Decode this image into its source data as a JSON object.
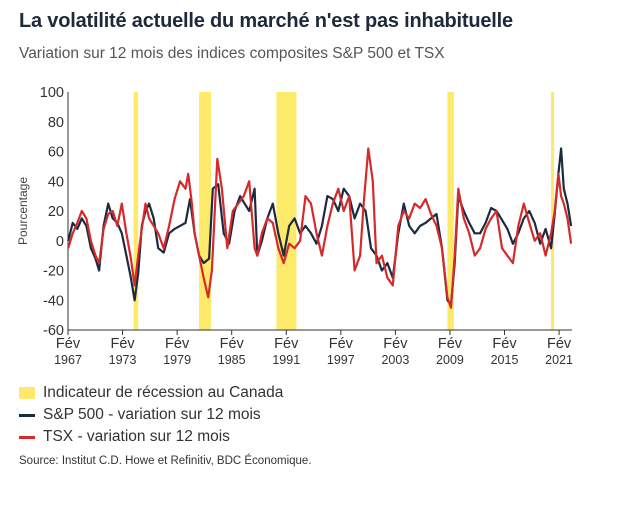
{
  "title": "La volatilité actuelle du marché n'est pas inhabituelle",
  "subtitle": "Variation sur 12 mois des indices composites S&P 500 et TSX",
  "source": "Source: Institut C.D. Howe et Refinitiv, BDC Économique.",
  "chart_data": {
    "type": "line",
    "ylabel": "Pourcentage",
    "ylim": [
      -60,
      100
    ],
    "yticks": [
      -60,
      -40,
      -20,
      0,
      20,
      40,
      60,
      80,
      100
    ],
    "xlim": [
      1967.08,
      2022.5
    ],
    "xticks": [
      {
        "value": 1967.08,
        "line1": "Fév",
        "line2": "1967"
      },
      {
        "value": 1973.08,
        "line1": "Fév",
        "line2": "1973"
      },
      {
        "value": 1979.08,
        "line1": "Fév",
        "line2": "1979"
      },
      {
        "value": 1985.08,
        "line1": "Fév",
        "line2": "1985"
      },
      {
        "value": 1991.08,
        "line1": "Fév",
        "line2": "1991"
      },
      {
        "value": 1997.08,
        "line1": "Fév",
        "line2": "1997"
      },
      {
        "value": 2003.08,
        "line1": "Fév",
        "line2": "2003"
      },
      {
        "value": 2009.08,
        "line1": "Fév",
        "line2": "2009"
      },
      {
        "value": 2015.08,
        "line1": "Fév",
        "line2": "2015"
      },
      {
        "value": 2021.08,
        "line1": "Fév",
        "line2": "2021"
      }
    ],
    "recessions": [
      [
        1974.3,
        1974.8
      ],
      [
        1981.5,
        1982.8
      ],
      [
        1990.0,
        1992.2
      ],
      [
        2008.8,
        2009.5
      ],
      [
        2020.2,
        2020.5
      ]
    ],
    "legend": [
      {
        "label": "Indicateur de récession au Canada",
        "color": "#fde96a",
        "kind": "box"
      },
      {
        "label": "S&P 500 - variation sur 12 mois",
        "color": "#1c2b3f",
        "kind": "line"
      },
      {
        "label": "TSX - variation sur 12 mois",
        "color": "#d62a2a",
        "kind": "line"
      }
    ],
    "series": [
      {
        "name": "S&P 500 - variation sur 12 mois",
        "color": "#1c2b3f",
        "x": [
          1967.1,
          1967.6,
          1968.1,
          1968.6,
          1969.1,
          1969.6,
          1970.1,
          1970.5,
          1971.0,
          1971.5,
          1972.0,
          1972.5,
          1973.0,
          1973.5,
          1974.0,
          1974.4,
          1974.8,
          1975.2,
          1975.6,
          1976.0,
          1976.5,
          1977.0,
          1977.6,
          1978.2,
          1978.8,
          1979.4,
          1980.0,
          1980.5,
          1981.0,
          1981.5,
          1982.0,
          1982.6,
          1983.0,
          1983.6,
          1984.2,
          1984.8,
          1985.4,
          1986.0,
          1986.5,
          1987.0,
          1987.6,
          1987.9,
          1988.4,
          1989.0,
          1989.6,
          1990.2,
          1990.8,
          1991.4,
          1992.0,
          1992.6,
          1993.2,
          1993.8,
          1994.4,
          1995.0,
          1995.6,
          1996.2,
          1996.8,
          1997.4,
          1998.0,
          1998.6,
          1999.2,
          1999.8,
          2000.4,
          2001.0,
          2001.6,
          2002.2,
          2002.8,
          2003.4,
          2004.0,
          2004.6,
          2005.2,
          2005.8,
          2006.4,
          2007.0,
          2007.6,
          2008.2,
          2008.8,
          2009.2,
          2009.6,
          2010.0,
          2010.6,
          2011.2,
          2011.8,
          2012.4,
          2013.0,
          2013.6,
          2014.2,
          2014.8,
          2015.4,
          2016.0,
          2016.6,
          2017.2,
          2017.8,
          2018.4,
          2019.0,
          2019.6,
          2020.2,
          2020.6,
          2021.0,
          2021.3,
          2021.6,
          2022.0,
          2022.4
        ],
        "y": [
          0,
          12,
          8,
          15,
          10,
          -5,
          -12,
          -20,
          10,
          25,
          15,
          12,
          5,
          -10,
          -25,
          -40,
          -22,
          10,
          20,
          25,
          15,
          -5,
          -8,
          5,
          8,
          10,
          12,
          28,
          5,
          -10,
          -15,
          -12,
          35,
          38,
          5,
          -2,
          20,
          30,
          25,
          20,
          35,
          -10,
          0,
          15,
          25,
          5,
          -10,
          10,
          15,
          5,
          10,
          5,
          -2,
          10,
          30,
          28,
          20,
          35,
          30,
          15,
          25,
          20,
          -5,
          -10,
          -20,
          -15,
          -25,
          5,
          25,
          10,
          5,
          10,
          12,
          15,
          18,
          -5,
          -40,
          -43,
          -15,
          30,
          20,
          12,
          5,
          5,
          12,
          22,
          20,
          14,
          8,
          -2,
          5,
          15,
          20,
          12,
          -2,
          8,
          -5,
          18,
          45,
          62,
          35,
          25,
          10
        ]
      },
      {
        "name": "TSX - variation sur 12 mois",
        "color": "#d62a2a",
        "x": [
          1967.1,
          1967.6,
          1968.1,
          1968.6,
          1969.1,
          1969.6,
          1970.1,
          1970.5,
          1971.0,
          1971.5,
          1972.0,
          1972.5,
          1973.0,
          1973.5,
          1974.0,
          1974.4,
          1974.8,
          1975.2,
          1975.6,
          1976.0,
          1976.5,
          1977.0,
          1977.6,
          1978.2,
          1978.8,
          1979.4,
          1980.0,
          1980.3,
          1980.7,
          1981.0,
          1981.5,
          1982.0,
          1982.5,
          1982.9,
          1983.5,
          1984.0,
          1984.6,
          1985.2,
          1985.8,
          1986.4,
          1987.0,
          1987.6,
          1987.9,
          1988.4,
          1989.0,
          1989.6,
          1990.2,
          1990.8,
          1991.4,
          1992.0,
          1992.6,
          1993.2,
          1993.8,
          1994.4,
          1995.0,
          1995.6,
          1996.2,
          1996.8,
          1997.4,
          1998.0,
          1998.6,
          1999.2,
          1999.6,
          2000.1,
          2000.6,
          2001.0,
          2001.6,
          2002.2,
          2002.8,
          2003.4,
          2004.0,
          2004.6,
          2005.2,
          2005.8,
          2006.4,
          2007.0,
          2007.6,
          2008.2,
          2008.8,
          2009.2,
          2009.6,
          2010.0,
          2010.6,
          2011.2,
          2011.8,
          2012.4,
          2013.0,
          2013.6,
          2014.2,
          2014.8,
          2015.4,
          2016.0,
          2016.6,
          2017.2,
          2017.8,
          2018.4,
          2019.0,
          2019.6,
          2020.2,
          2020.6,
          2021.0,
          2021.3,
          2021.6,
          2022.0,
          2022.4
        ],
        "y": [
          -5,
          5,
          12,
          20,
          15,
          0,
          -10,
          -15,
          8,
          18,
          20,
          10,
          25,
          5,
          -12,
          -30,
          -10,
          8,
          25,
          15,
          10,
          5,
          -5,
          10,
          28,
          40,
          35,
          45,
          25,
          5,
          -10,
          -25,
          -38,
          -20,
          55,
          35,
          -5,
          20,
          25,
          30,
          40,
          -5,
          -10,
          5,
          15,
          12,
          -5,
          -15,
          -2,
          -5,
          0,
          30,
          25,
          5,
          -10,
          10,
          25,
          35,
          20,
          30,
          -20,
          -10,
          25,
          62,
          40,
          -15,
          -10,
          -25,
          -30,
          10,
          20,
          15,
          25,
          22,
          28,
          18,
          10,
          -5,
          -38,
          -45,
          -10,
          35,
          15,
          5,
          -10,
          -5,
          8,
          15,
          20,
          -5,
          -10,
          -15,
          10,
          25,
          12,
          0,
          5,
          -10,
          5,
          20,
          45,
          30,
          25,
          15,
          -2
        ]
      }
    ]
  }
}
